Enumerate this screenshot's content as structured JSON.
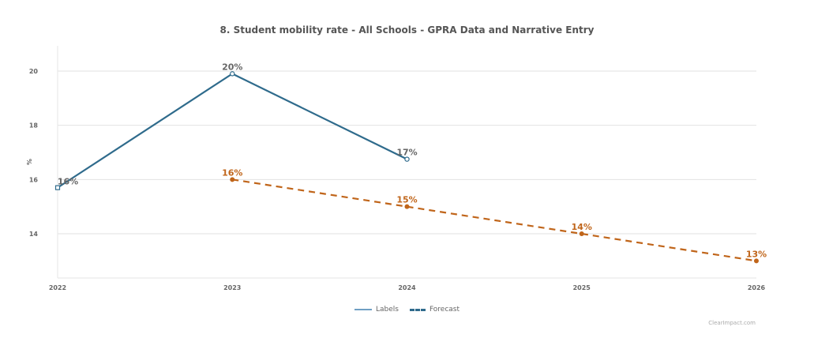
{
  "chart_data": {
    "type": "line",
    "title": "8. Student mobility rate - All Schools - GPRA Data and Narrative Entry",
    "xlabel": "",
    "ylabel": "%",
    "categories": [
      "2022",
      "2023",
      "2024",
      "2025",
      "2026"
    ],
    "yticks": [
      14,
      16,
      18,
      20
    ],
    "ylim": [
      12.37,
      20.93
    ],
    "grid": true,
    "legend_position": "bottom-center",
    "series": [
      {
        "name": "Labels",
        "style": "solid",
        "color": "#2f6b8c",
        "marker": "hollow",
        "label_color": "#666666",
        "points": [
          {
            "x": "2022",
            "y": 15.7,
            "label": "16%"
          },
          {
            "x": "2023",
            "y": 19.9,
            "label": "20%"
          },
          {
            "x": "2024",
            "y": 16.75,
            "label": "17%"
          }
        ]
      },
      {
        "name": "Forecast",
        "style": "dashed",
        "color": "#c0651a",
        "marker": "filled",
        "label_color": "#c0651a",
        "points": [
          {
            "x": "2023",
            "y": 16,
            "label": "16%"
          },
          {
            "x": "2024",
            "y": 15,
            "label": "15%"
          },
          {
            "x": "2025",
            "y": 14,
            "label": "14%"
          },
          {
            "x": "2026",
            "y": 13,
            "label": "13%"
          }
        ]
      }
    ],
    "legend": [
      {
        "label": "Labels",
        "style": "solid",
        "color": "#6f9fc4"
      },
      {
        "label": "Forecast",
        "style": "dashed",
        "color": "#2f6b8c"
      }
    ]
  },
  "credit": "ClearImpact.com"
}
